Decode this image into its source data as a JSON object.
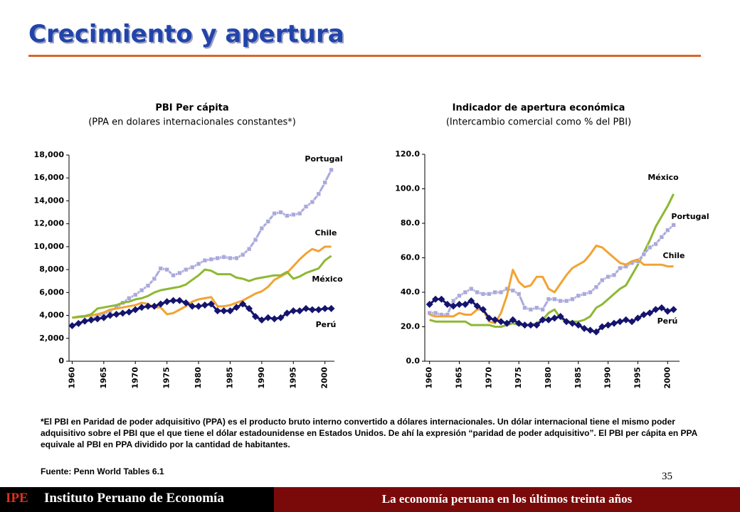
{
  "title": "Crecimiento y apertura",
  "note": "*El PBI en Paridad de poder adquisitivo (PPA) es el producto bruto interno convertido a dólares internacionales. Un dólar internacional tiene el mismo poder adquisitivo sobre el PBI que el que tiene el dólar estadounidense en Estados Unidos. De ahí la expresión “paridad de poder adquisitivo”. El PBI per cápita en PPA equivale al PBI en PPA dividido por la cantidad de habitantes.",
  "source": "Fuente: Penn World Tables 6.1",
  "page_number": "35",
  "footer": {
    "logo": "IPE",
    "institution": "Instituto Peruano de Economía",
    "subtitle": "La economía peruana en los últimos treinta años"
  },
  "chart_data": [
    {
      "type": "line",
      "title": "PBI Per cápita",
      "subtitle": "(PPA en dolares internacionales constantes*)",
      "x": [
        1960,
        1961,
        1962,
        1963,
        1964,
        1965,
        1966,
        1967,
        1968,
        1969,
        1970,
        1971,
        1972,
        1973,
        1974,
        1975,
        1976,
        1977,
        1978,
        1979,
        1980,
        1981,
        1982,
        1983,
        1984,
        1985,
        1986,
        1987,
        1988,
        1989,
        1990,
        1991,
        1992,
        1993,
        1994,
        1995,
        1996,
        1997,
        1998,
        1999,
        2000,
        2001
      ],
      "xlim": [
        1959.5,
        2001.5
      ],
      "xticks": [
        1960,
        1965,
        1970,
        1975,
        1980,
        1985,
        1990,
        1995,
        2000
      ],
      "ylim": [
        0,
        18000
      ],
      "yticks": [
        0,
        {
          "value": 2000,
          "label": "2,000"
        },
        {
          "value": 4000,
          "label": "4,000"
        },
        {
          "value": 6000,
          "label": "6,000"
        },
        {
          "value": 8000,
          "label": "8,000"
        },
        {
          "value": 10000,
          "label": "10,000"
        },
        {
          "value": 12000,
          "label": "12,000"
        },
        {
          "value": 14000,
          "label": "14,000"
        },
        {
          "value": 16000,
          "label": "16,000"
        },
        {
          "value": 18000,
          "label": "18,000"
        }
      ],
      "series": [
        {
          "name": "Portugal",
          "color": "#a9a9dc",
          "marker": "square",
          "values": [
            3100,
            3300,
            3500,
            3700,
            3900,
            4100,
            4400,
            4700,
            5100,
            5500,
            5800,
            6200,
            6600,
            7200,
            8100,
            8000,
            7500,
            7700,
            8000,
            8200,
            8500,
            8800,
            8900,
            9000,
            9100,
            9000,
            9000,
            9300,
            9800,
            10600,
            11600,
            12200,
            12900,
            13000,
            12700,
            12800,
            12900,
            13500,
            13900,
            14600,
            15600,
            16700
          ]
        },
        {
          "name": "Chile",
          "color": "#f2a333",
          "values": [
            3800,
            3850,
            3900,
            4000,
            4100,
            4250,
            4500,
            4600,
            4700,
            4800,
            4900,
            5100,
            5000,
            4700,
            4700,
            4100,
            4200,
            4500,
            4800,
            5200,
            5400,
            5500,
            5600,
            4800,
            4800,
            4900,
            5100,
            5300,
            5600,
            5900,
            6100,
            6500,
            7100,
            7400,
            7700,
            8300,
            8900,
            9400,
            9800,
            9600,
            10000,
            10000
          ]
        },
        {
          "name": "México",
          "color": "#8db833",
          "values": [
            3800,
            3900,
            3950,
            4100,
            4600,
            4700,
            4800,
            4900,
            5100,
            5200,
            5400,
            5500,
            5700,
            6000,
            6200,
            6300,
            6400,
            6500,
            6700,
            7100,
            7500,
            8000,
            7900,
            7600,
            7600,
            7600,
            7300,
            7200,
            7000,
            7200,
            7300,
            7400,
            7500,
            7500,
            7800,
            7200,
            7400,
            7700,
            7900,
            8100,
            8800,
            9200
          ]
        },
        {
          "name": "Perú",
          "color": "#14146e",
          "marker": "diamond",
          "values": [
            3100,
            3300,
            3500,
            3600,
            3700,
            3800,
            4000,
            4100,
            4200,
            4300,
            4500,
            4700,
            4800,
            4800,
            5000,
            5200,
            5300,
            5300,
            5100,
            4800,
            4800,
            4900,
            5000,
            4400,
            4400,
            4400,
            4700,
            5000,
            4600,
            3900,
            3600,
            3800,
            3700,
            3800,
            4200,
            4400,
            4400,
            4600,
            4500,
            4500,
            4600,
            4600
          ]
        }
      ]
    },
    {
      "type": "line",
      "title": "Indicador de apertura económica",
      "subtitle": "(Intercambio comercial como % del PBI)",
      "x": [
        1960,
        1961,
        1962,
        1963,
        1964,
        1965,
        1966,
        1967,
        1968,
        1969,
        1970,
        1971,
        1972,
        1973,
        1974,
        1975,
        1976,
        1977,
        1978,
        1979,
        1980,
        1981,
        1982,
        1983,
        1984,
        1985,
        1986,
        1987,
        1988,
        1989,
        1990,
        1991,
        1992,
        1993,
        1994,
        1995,
        1996,
        1997,
        1998,
        1999,
        2000,
        2001
      ],
      "xlim": [
        1959.2,
        2002
      ],
      "xticks": [
        1960,
        1965,
        1970,
        1975,
        1980,
        1985,
        1990,
        1995,
        2000
      ],
      "ylim": [
        0,
        120
      ],
      "yticks": [
        {
          "value": 0,
          "label": "0.0"
        },
        {
          "value": 20,
          "label": "20.0"
        },
        {
          "value": 40,
          "label": "40.0"
        },
        {
          "value": 60,
          "label": "60.0"
        },
        {
          "value": 80,
          "label": "80.0"
        },
        {
          "value": 100,
          "label": "100.0"
        },
        {
          "value": 120,
          "label": "120.0"
        }
      ],
      "series": [
        {
          "name": "México",
          "color": "#8db833",
          "values": [
            24,
            23,
            23,
            23,
            23,
            23,
            23,
            21,
            21,
            21,
            21,
            20,
            20,
            21,
            22,
            21,
            21,
            21,
            22,
            24,
            28,
            30,
            25,
            23,
            23,
            23,
            24,
            26,
            31,
            33,
            36,
            39,
            42,
            44,
            50,
            56,
            63,
            70,
            78,
            84,
            90,
            97
          ]
        },
        {
          "name": "Portugal",
          "color": "#a9a9dc",
          "marker": "square",
          "values": [
            28,
            28,
            27,
            27,
            35,
            38,
            40,
            42,
            40,
            39,
            39,
            40,
            40,
            42,
            41,
            39,
            31,
            30,
            31,
            30,
            36,
            36,
            35,
            35,
            36,
            38,
            39,
            40,
            43,
            47,
            49,
            50,
            54,
            55,
            57,
            58,
            62,
            66,
            68,
            72,
            76,
            79
          ]
        },
        {
          "name": "Chile",
          "color": "#f2a333",
          "values": [
            27,
            26,
            26,
            26,
            26,
            28,
            27,
            27,
            30,
            30,
            23,
            22,
            28,
            38,
            53,
            46,
            43,
            44,
            49,
            49,
            42,
            40,
            45,
            50,
            54,
            56,
            58,
            62,
            67,
            66,
            63,
            60,
            57,
            56,
            58,
            59,
            56,
            56,
            56,
            56,
            55,
            55
          ]
        },
        {
          "name": "Perú",
          "color": "#14146e",
          "marker": "diamond",
          "values": [
            33,
            36,
            36,
            33,
            32,
            33,
            33,
            35,
            32,
            30,
            25,
            24,
            23,
            22,
            24,
            22,
            21,
            21,
            21,
            24,
            24,
            25,
            26,
            23,
            22,
            21,
            19,
            18,
            17,
            20,
            21,
            22,
            23,
            24,
            23,
            25,
            27,
            28,
            30,
            31,
            29,
            30
          ]
        }
      ]
    }
  ]
}
